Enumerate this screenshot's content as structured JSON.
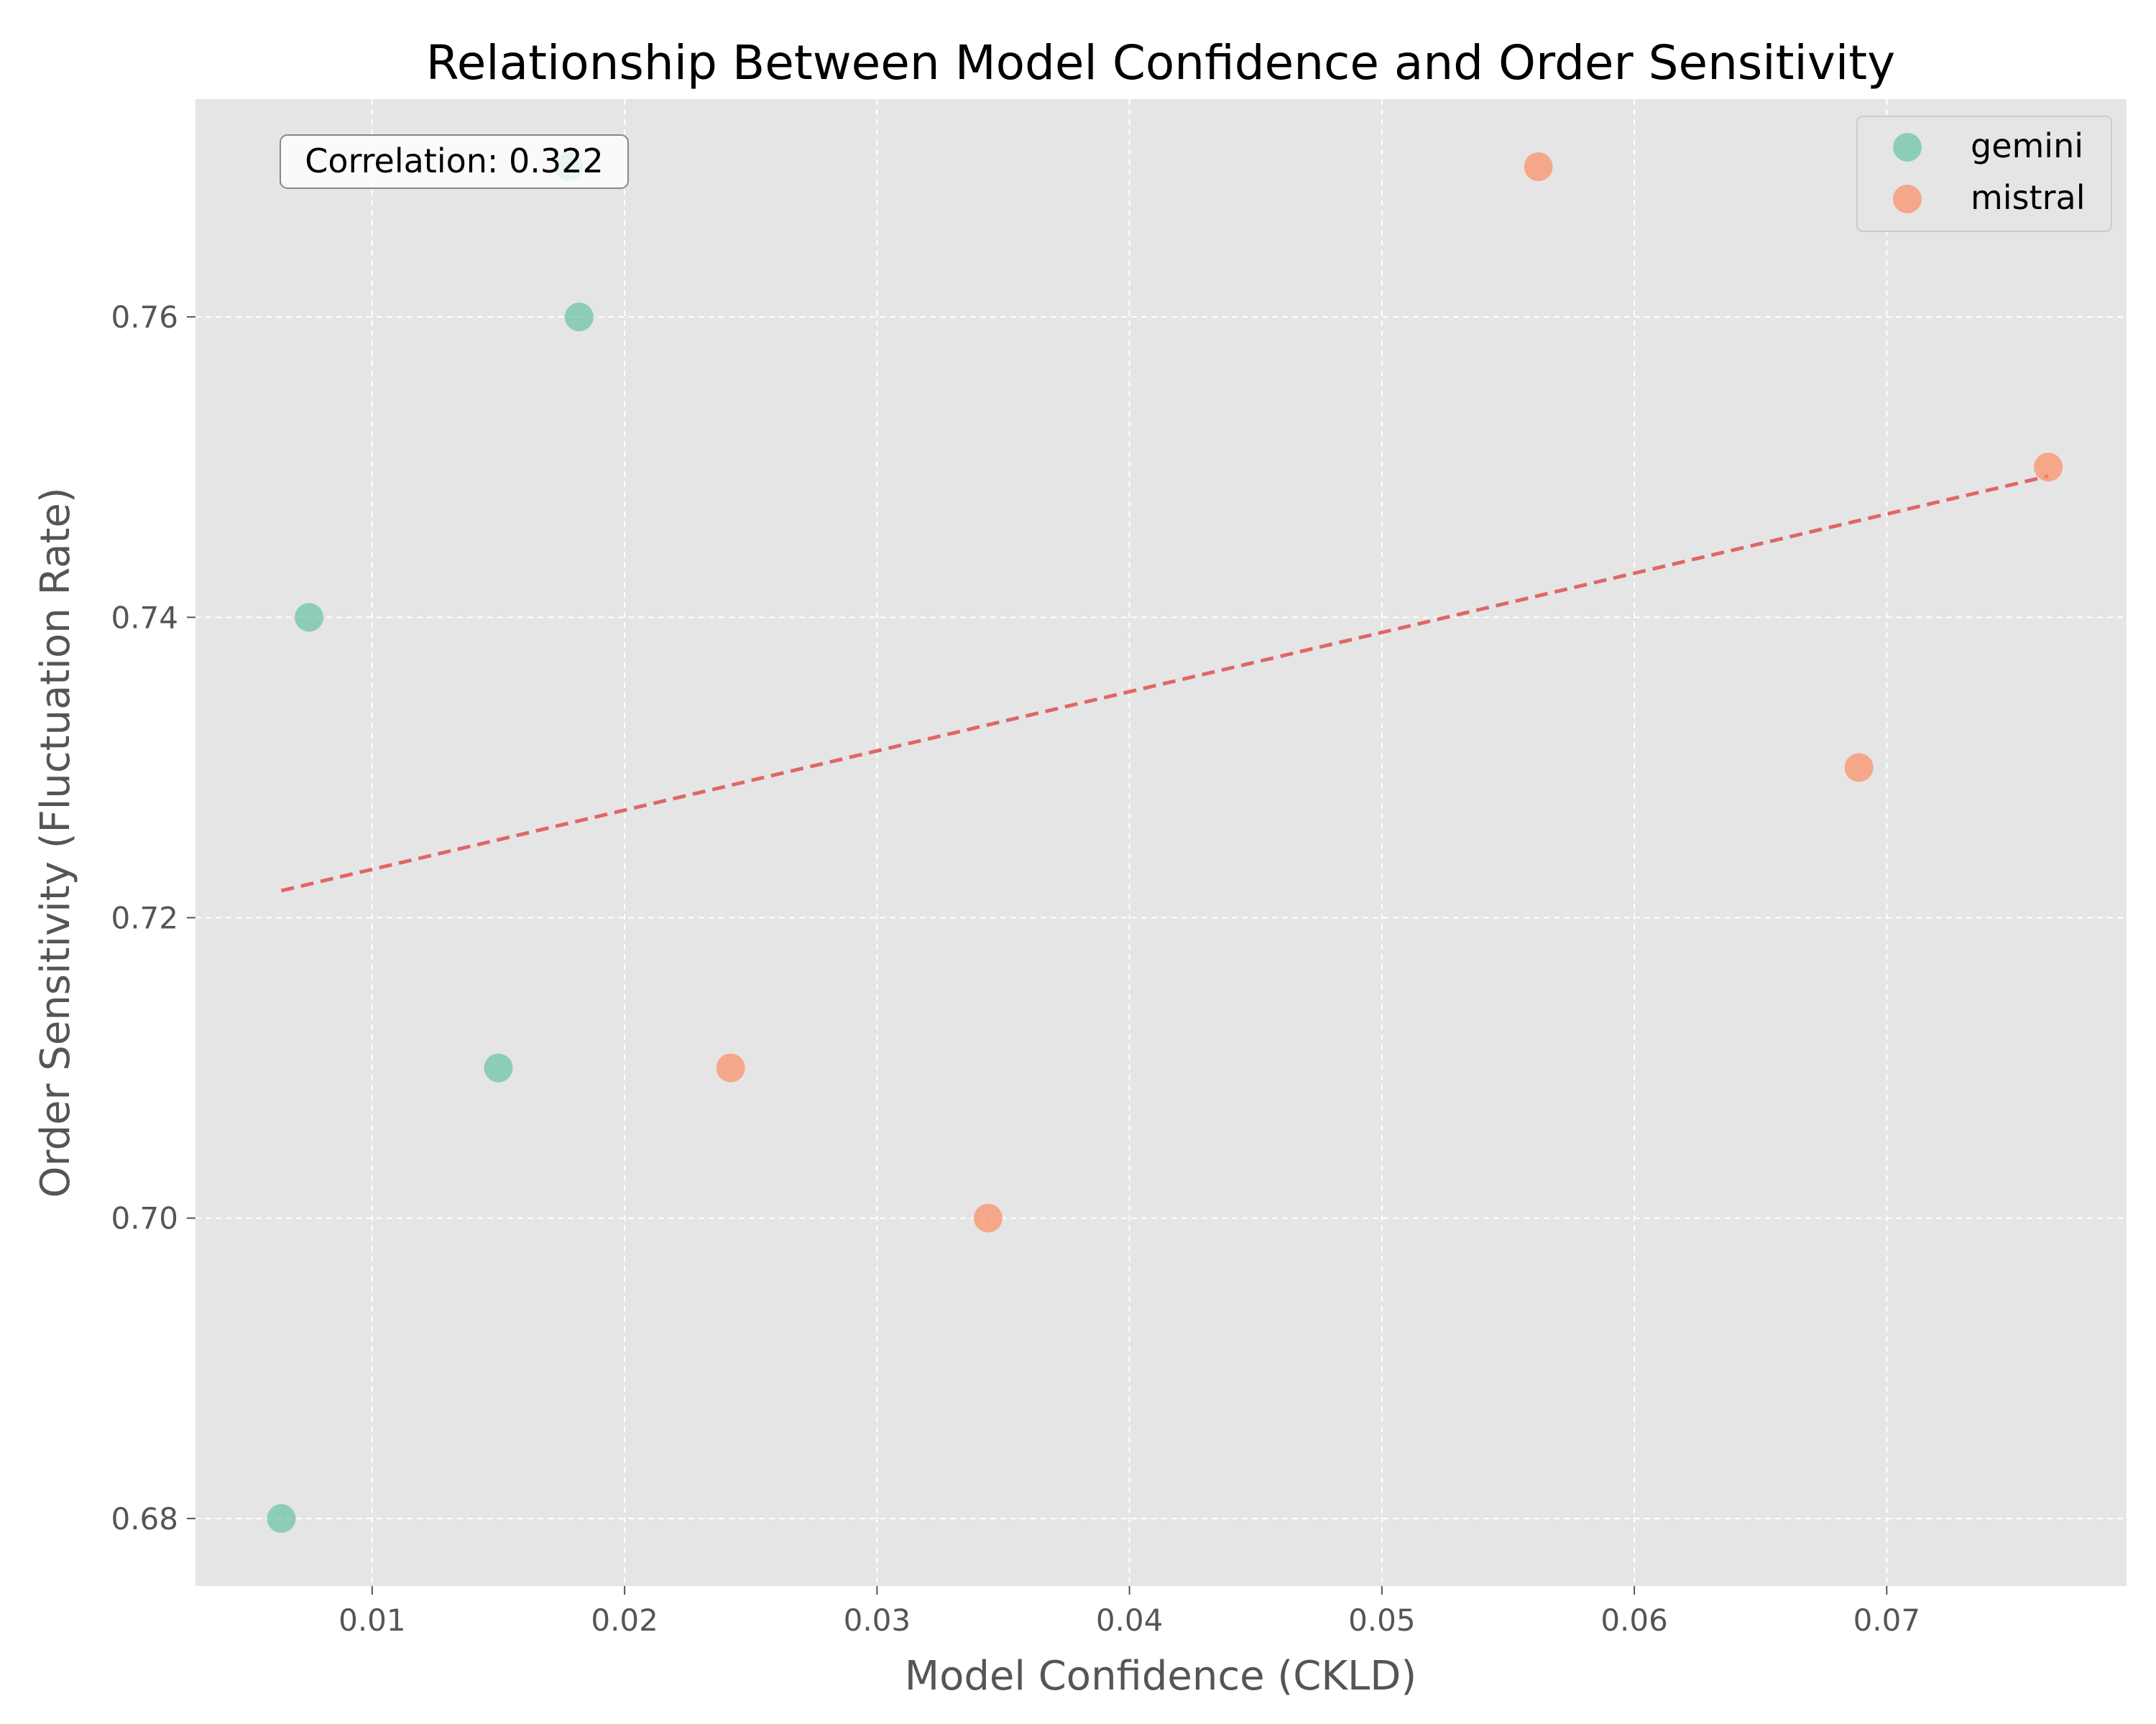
{
  "chart_data": {
    "type": "scatter",
    "title": "Relationship Between Model Confidence and Order Sensitivity",
    "xlabel": "Model Confidence (CKLD)",
    "ylabel": "Order Sensitivity (Fluctuation Rate)",
    "xlim": [
      0.003,
      0.0795
    ],
    "ylim": [
      0.6755,
      0.7745
    ],
    "xticks": [
      0.01,
      0.02,
      0.03,
      0.04,
      0.05,
      0.06,
      0.07
    ],
    "xtick_labels": [
      "0.01",
      "0.02",
      "0.03",
      "0.04",
      "0.05",
      "0.06",
      "0.07"
    ],
    "yticks": [
      0.68,
      0.7,
      0.72,
      0.74,
      0.76
    ],
    "ytick_labels": [
      "0.68",
      "0.70",
      "0.72",
      "0.74",
      "0.76"
    ],
    "grid": true,
    "legend_position": "top-right",
    "series": [
      {
        "name": "gemini",
        "color": "#66c2a5",
        "points": [
          {
            "x": 0.0064,
            "y": 0.68
          },
          {
            "x": 0.0075,
            "y": 0.74
          },
          {
            "x": 0.015,
            "y": 0.71
          },
          {
            "x": 0.0182,
            "y": 0.76
          },
          {
            "x": 0.0178,
            "y": 0.77
          }
        ]
      },
      {
        "name": "mistral",
        "color": "#fc8d62",
        "points": [
          {
            "x": 0.0242,
            "y": 0.71
          },
          {
            "x": 0.0344,
            "y": 0.7
          },
          {
            "x": 0.0562,
            "y": 0.77
          },
          {
            "x": 0.0689,
            "y": 0.73
          },
          {
            "x": 0.0764,
            "y": 0.75
          }
        ]
      }
    ],
    "trendline": {
      "style": "dashed",
      "color": "#e06666",
      "x": [
        0.0064,
        0.0764
      ],
      "y": [
        0.7218,
        0.7494
      ]
    },
    "annotation": {
      "text": "Correlation: 0.322",
      "position": "top-left"
    }
  }
}
